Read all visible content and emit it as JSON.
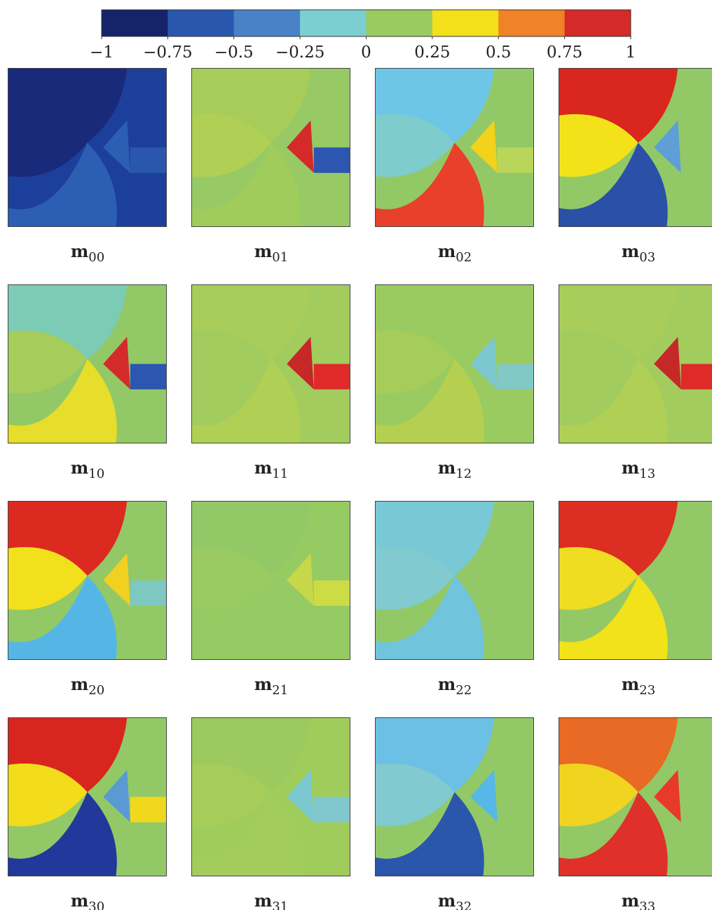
{
  "colorbar": {
    "lim": [
      -1,
      1
    ],
    "ticks": [
      {
        "value": -1,
        "label": "−1"
      },
      {
        "value": -0.75,
        "label": "−0.75"
      },
      {
        "value": -0.5,
        "label": "−0.5"
      },
      {
        "value": -0.25,
        "label": "−0.25"
      },
      0,
      0.25,
      0.5,
      0.75,
      1
    ],
    "colors": [
      "#15236b",
      "#2a57ae",
      "#4a82c8",
      "#7bcfd0",
      "#9acb60",
      "#f3df1a",
      "#f08228",
      "#d42a28"
    ]
  },
  "panels": [
    {
      "symbol": "m",
      "index": "00"
    },
    {
      "symbol": "m",
      "index": "01"
    },
    {
      "symbol": "m",
      "index": "02"
    },
    {
      "symbol": "m",
      "index": "03"
    },
    {
      "symbol": "m",
      "index": "10"
    },
    {
      "symbol": "m",
      "index": "11"
    },
    {
      "symbol": "m",
      "index": "12"
    },
    {
      "symbol": "m",
      "index": "13"
    },
    {
      "symbol": "m",
      "index": "20"
    },
    {
      "symbol": "m",
      "index": "21"
    },
    {
      "symbol": "m",
      "index": "22"
    },
    {
      "symbol": "m",
      "index": "23"
    },
    {
      "symbol": "m",
      "index": "30"
    },
    {
      "symbol": "m",
      "index": "31"
    },
    {
      "symbol": "m",
      "index": "32"
    },
    {
      "symbol": "m",
      "index": "33"
    }
  ]
}
